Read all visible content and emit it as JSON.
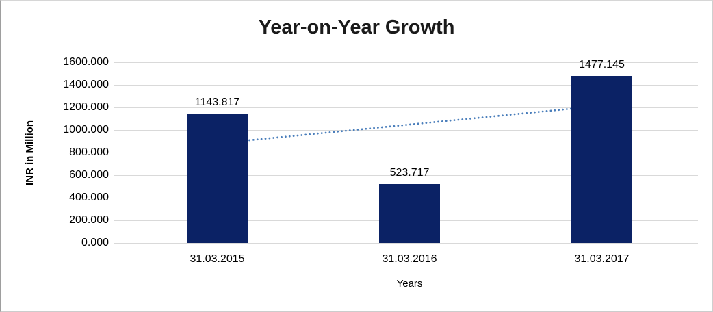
{
  "chart_data": {
    "type": "bar",
    "title": "Year-on-Year Growth",
    "xlabel": "Years",
    "ylabel": "INR in Million",
    "categories": [
      "31.03.2015",
      "31.03.2016",
      "31.03.2017"
    ],
    "values": [
      1143.817,
      523.717,
      1477.145
    ],
    "data_labels": [
      "1143.817",
      "523.717",
      "1477.145"
    ],
    "y_ticks": [
      "1600.000",
      "1400.000",
      "1200.000",
      "1000.000",
      "800.000",
      "600.000",
      "400.000",
      "200.000",
      "0.000"
    ],
    "ylim": [
      0,
      1600
    ],
    "y_step": 200,
    "grid": "horizontal",
    "legend": "none",
    "bar_color": "#0b2265",
    "gridline_color": "#d9d9d9",
    "trendline": {
      "style": "dotted",
      "color": "#4a7ebb",
      "start_value": 881.6,
      "end_value": 1214.9,
      "spans_categories": [
        "31.03.2015",
        "31.03.2017"
      ]
    }
  }
}
